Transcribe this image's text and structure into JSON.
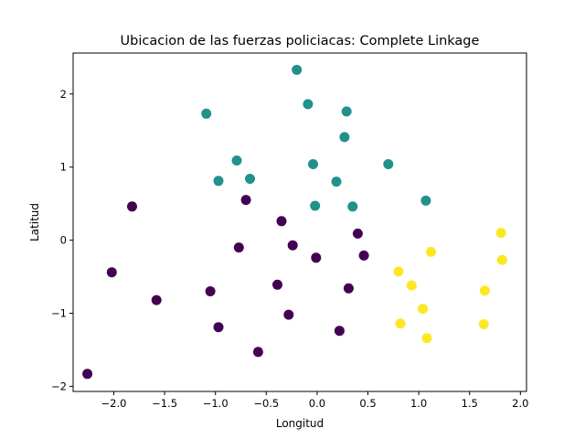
{
  "chart_data": {
    "type": "scatter",
    "title": "Ubicacion de las fuerzas policiacas: Complete Linkage",
    "xlabel": "Longitud",
    "ylabel": "Latitud",
    "xlim": [
      -2.4,
      2.06
    ],
    "ylim": [
      -2.07,
      2.56
    ],
    "x_ticks": [
      -2.0,
      -1.5,
      -1.0,
      -0.5,
      0.0,
      0.5,
      1.0,
      1.5,
      2.0
    ],
    "x_tick_labels": [
      "−2.0",
      "−1.5",
      "−1.0",
      "−0.5",
      "0.0",
      "0.5",
      "1.0",
      "1.5",
      "2.0"
    ],
    "y_ticks": [
      -2,
      -1,
      0,
      1,
      2
    ],
    "y_tick_labels": [
      "−2",
      "−1",
      "0",
      "1",
      "2"
    ],
    "grid": false,
    "legend": "none",
    "colors": {
      "cluster_1": "#440154",
      "cluster_2": "#21918c",
      "cluster_3": "#fde725"
    },
    "series": [
      {
        "color": "#440154",
        "x": [
          -2.26,
          -2.02,
          -1.82,
          -1.58,
          -1.05,
          -0.97,
          -0.7,
          -0.77,
          -0.58,
          -0.39,
          -0.35,
          -0.28,
          -0.24,
          -0.01,
          0.22,
          0.31,
          0.4,
          0.46
        ],
        "y": [
          -1.83,
          -0.44,
          0.46,
          -0.82,
          -0.7,
          -1.19,
          0.55,
          -0.1,
          -1.53,
          -0.61,
          0.26,
          -1.02,
          -0.07,
          -0.24,
          -1.24,
          -0.66,
          0.09,
          -0.21
        ]
      },
      {
        "color": "#21918c",
        "x": [
          -0.2,
          -0.09,
          0.29,
          0.27,
          -1.09,
          -0.79,
          -0.97,
          -0.66,
          -0.04,
          -0.02,
          0.19,
          0.35,
          0.7,
          1.07
        ],
        "y": [
          2.33,
          1.86,
          1.76,
          1.41,
          1.73,
          1.09,
          0.81,
          0.84,
          1.04,
          0.47,
          0.8,
          0.46,
          1.04,
          0.54
        ]
      },
      {
        "color": "#fde725",
        "x": [
          0.8,
          0.82,
          0.93,
          1.04,
          1.08,
          1.12,
          1.64,
          1.65,
          1.81,
          1.82
        ],
        "y": [
          -0.43,
          -1.14,
          -0.62,
          -0.94,
          -1.34,
          -0.16,
          -1.15,
          -0.69,
          0.1,
          -0.27
        ]
      }
    ]
  }
}
